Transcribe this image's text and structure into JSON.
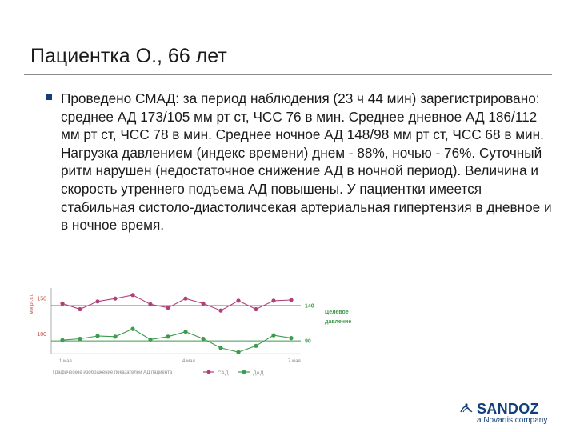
{
  "slide": {
    "title": "Пациентка О., 66 лет",
    "bullet": "Проведено СМАД: за период наблюдения (23 ч 44 мин) зарегистрировано: среднее АД 173/105 мм рт ст, ЧСС 76 в мин. Среднее дневное АД 186/112 мм рт ст, ЧСС 78 в мин. Среднее ночное АД 148/98 мм рт ст, ЧСС 68 в мин. Нагрузка давлением (индекс времени) днем - 88%, ночью - 76%. Суточный ритм нарушен (недостаточное снижение АД в ночной период). Величина и скорость утреннего подъема АД повышены. У пациентки имеется стабильная систоло-диастоличсекая артериальная гипертензия в дневное и в ночное время."
  },
  "chart_data": {
    "type": "line",
    "ylabel": "мм рт.ст.",
    "yticks": [
      150,
      100
    ],
    "ylim": [
      72,
      165
    ],
    "x": [
      0,
      1,
      2,
      3,
      4,
      5,
      6,
      7,
      8,
      9,
      10,
      11,
      12,
      13
    ],
    "xtick_labels": [
      {
        "x": 0,
        "label": "1 мая"
      },
      {
        "x": 7,
        "label": "4 мая"
      },
      {
        "x": 13,
        "label": "7 мая"
      }
    ],
    "reference_lines": [
      {
        "value": 140,
        "label": "140"
      },
      {
        "value": 90,
        "label": "90"
      }
    ],
    "reference_note": [
      "Целевое",
      "давление"
    ],
    "series": [
      {
        "name": "САД",
        "color": "#b0407a",
        "values": [
          143,
          135,
          146,
          150,
          155,
          142,
          137,
          150,
          143,
          133,
          147,
          135,
          147,
          148
        ]
      },
      {
        "name": "ДАД",
        "color": "#3e9a4e",
        "values": [
          91,
          93,
          97,
          96,
          107,
          92,
          96,
          103,
          93,
          80,
          74,
          83,
          98,
          94
        ]
      }
    ],
    "caption": "Графическое изображение показателей АД пациента"
  },
  "logo": {
    "name": "SANDOZ",
    "sub": "a Novartis company"
  },
  "colors": {
    "accent": "#123f7a",
    "ref_line": "#3e9a4e",
    "chart_text": "#c44a3a",
    "axis": "#8a8a8a"
  }
}
